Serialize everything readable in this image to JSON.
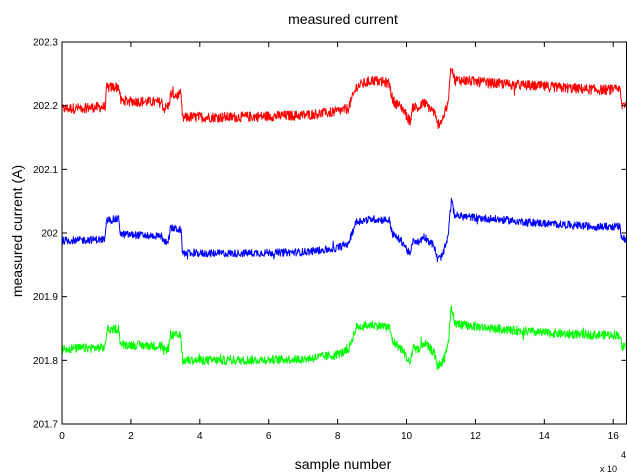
{
  "chart_data": {
    "type": "line",
    "title": "measured current",
    "xlabel": "sample number",
    "ylabel": "measured current (A)",
    "x_multiplier_label": "x 10",
    "x_multiplier_exponent": "4",
    "xlim": [
      0,
      16.4
    ],
    "ylim": [
      201.7,
      202.3
    ],
    "xticks": [
      0,
      2,
      4,
      6,
      8,
      10,
      12,
      14,
      16
    ],
    "xtick_labels": [
      "0",
      "2",
      "4",
      "6",
      "8",
      "10",
      "12",
      "14",
      "16"
    ],
    "yticks": [
      201.7,
      201.8,
      201.9,
      202.0,
      202.1,
      202.2,
      202.3
    ],
    "ytick_labels": [
      "201.7",
      "201.8",
      "201.9",
      "202",
      "202.1",
      "202.2",
      "202.3"
    ],
    "grid": false,
    "legend": "none",
    "series": [
      {
        "color": "#ff0000",
        "noise": 0.008,
        "x": [
          0,
          1.25,
          1.3,
          1.65,
          1.7,
          2.9,
          2.95,
          3.1,
          3.15,
          3.45,
          3.5,
          3.7,
          5,
          7,
          7.9,
          8.3,
          8.45,
          8.55,
          9.0,
          9.5,
          9.6,
          9.9,
          10.1,
          10.2,
          10.35,
          10.5,
          10.8,
          10.9,
          11.05,
          11.2,
          11.3,
          11.4,
          11.6,
          12.5,
          14,
          15.5,
          16.2,
          16.25,
          16.4
        ],
        "y": [
          202.195,
          202.198,
          202.228,
          202.23,
          202.208,
          202.205,
          202.195,
          202.2,
          202.218,
          202.215,
          202.18,
          202.182,
          202.182,
          202.185,
          202.19,
          202.195,
          202.215,
          202.23,
          202.24,
          202.235,
          202.208,
          202.195,
          202.175,
          202.2,
          202.195,
          202.205,
          202.19,
          202.17,
          202.18,
          202.2,
          202.265,
          202.24,
          202.24,
          202.235,
          202.23,
          202.225,
          202.225,
          202.2,
          202.205
        ]
      },
      {
        "color": "#0000ff",
        "noise": 0.006,
        "x": [
          0,
          1.25,
          1.3,
          1.65,
          1.7,
          2.9,
          2.95,
          3.1,
          3.15,
          3.45,
          3.5,
          3.7,
          5,
          7,
          7.9,
          8.3,
          8.45,
          8.55,
          9.0,
          9.5,
          9.6,
          9.9,
          10.1,
          10.2,
          10.35,
          10.5,
          10.8,
          10.9,
          11.05,
          11.2,
          11.3,
          11.4,
          11.6,
          12.5,
          14,
          15.5,
          16.2,
          16.25,
          16.4
        ],
        "y": [
          201.988,
          201.99,
          202.02,
          202.022,
          201.998,
          201.995,
          201.985,
          201.99,
          202.008,
          202.005,
          201.968,
          201.968,
          201.968,
          201.97,
          201.975,
          201.983,
          202.005,
          202.018,
          202.022,
          202.02,
          201.998,
          201.985,
          201.965,
          201.99,
          201.985,
          201.995,
          201.98,
          201.958,
          201.965,
          201.992,
          202.05,
          202.028,
          202.026,
          202.022,
          202.015,
          202.01,
          202.01,
          201.99,
          201.992
        ]
      },
      {
        "color": "#00ff00",
        "noise": 0.007,
        "x": [
          0,
          1.25,
          1.3,
          1.65,
          1.7,
          2.9,
          2.95,
          3.1,
          3.15,
          3.45,
          3.5,
          3.7,
          5,
          7,
          7.9,
          8.3,
          8.45,
          8.55,
          9.0,
          9.5,
          9.6,
          9.9,
          10.1,
          10.2,
          10.35,
          10.5,
          10.8,
          10.9,
          11.05,
          11.2,
          11.3,
          11.4,
          11.6,
          12.5,
          14,
          15.5,
          16.2,
          16.25,
          16.4
        ],
        "y": [
          201.818,
          201.82,
          201.848,
          201.85,
          201.825,
          201.822,
          201.815,
          201.82,
          201.84,
          201.838,
          201.8,
          201.8,
          201.8,
          201.802,
          201.808,
          201.815,
          201.838,
          201.852,
          201.856,
          201.852,
          201.83,
          201.815,
          201.795,
          201.822,
          201.815,
          201.828,
          201.812,
          201.79,
          201.798,
          201.822,
          201.88,
          201.858,
          201.856,
          201.85,
          201.843,
          201.84,
          201.84,
          201.82,
          201.822
        ]
      }
    ]
  }
}
